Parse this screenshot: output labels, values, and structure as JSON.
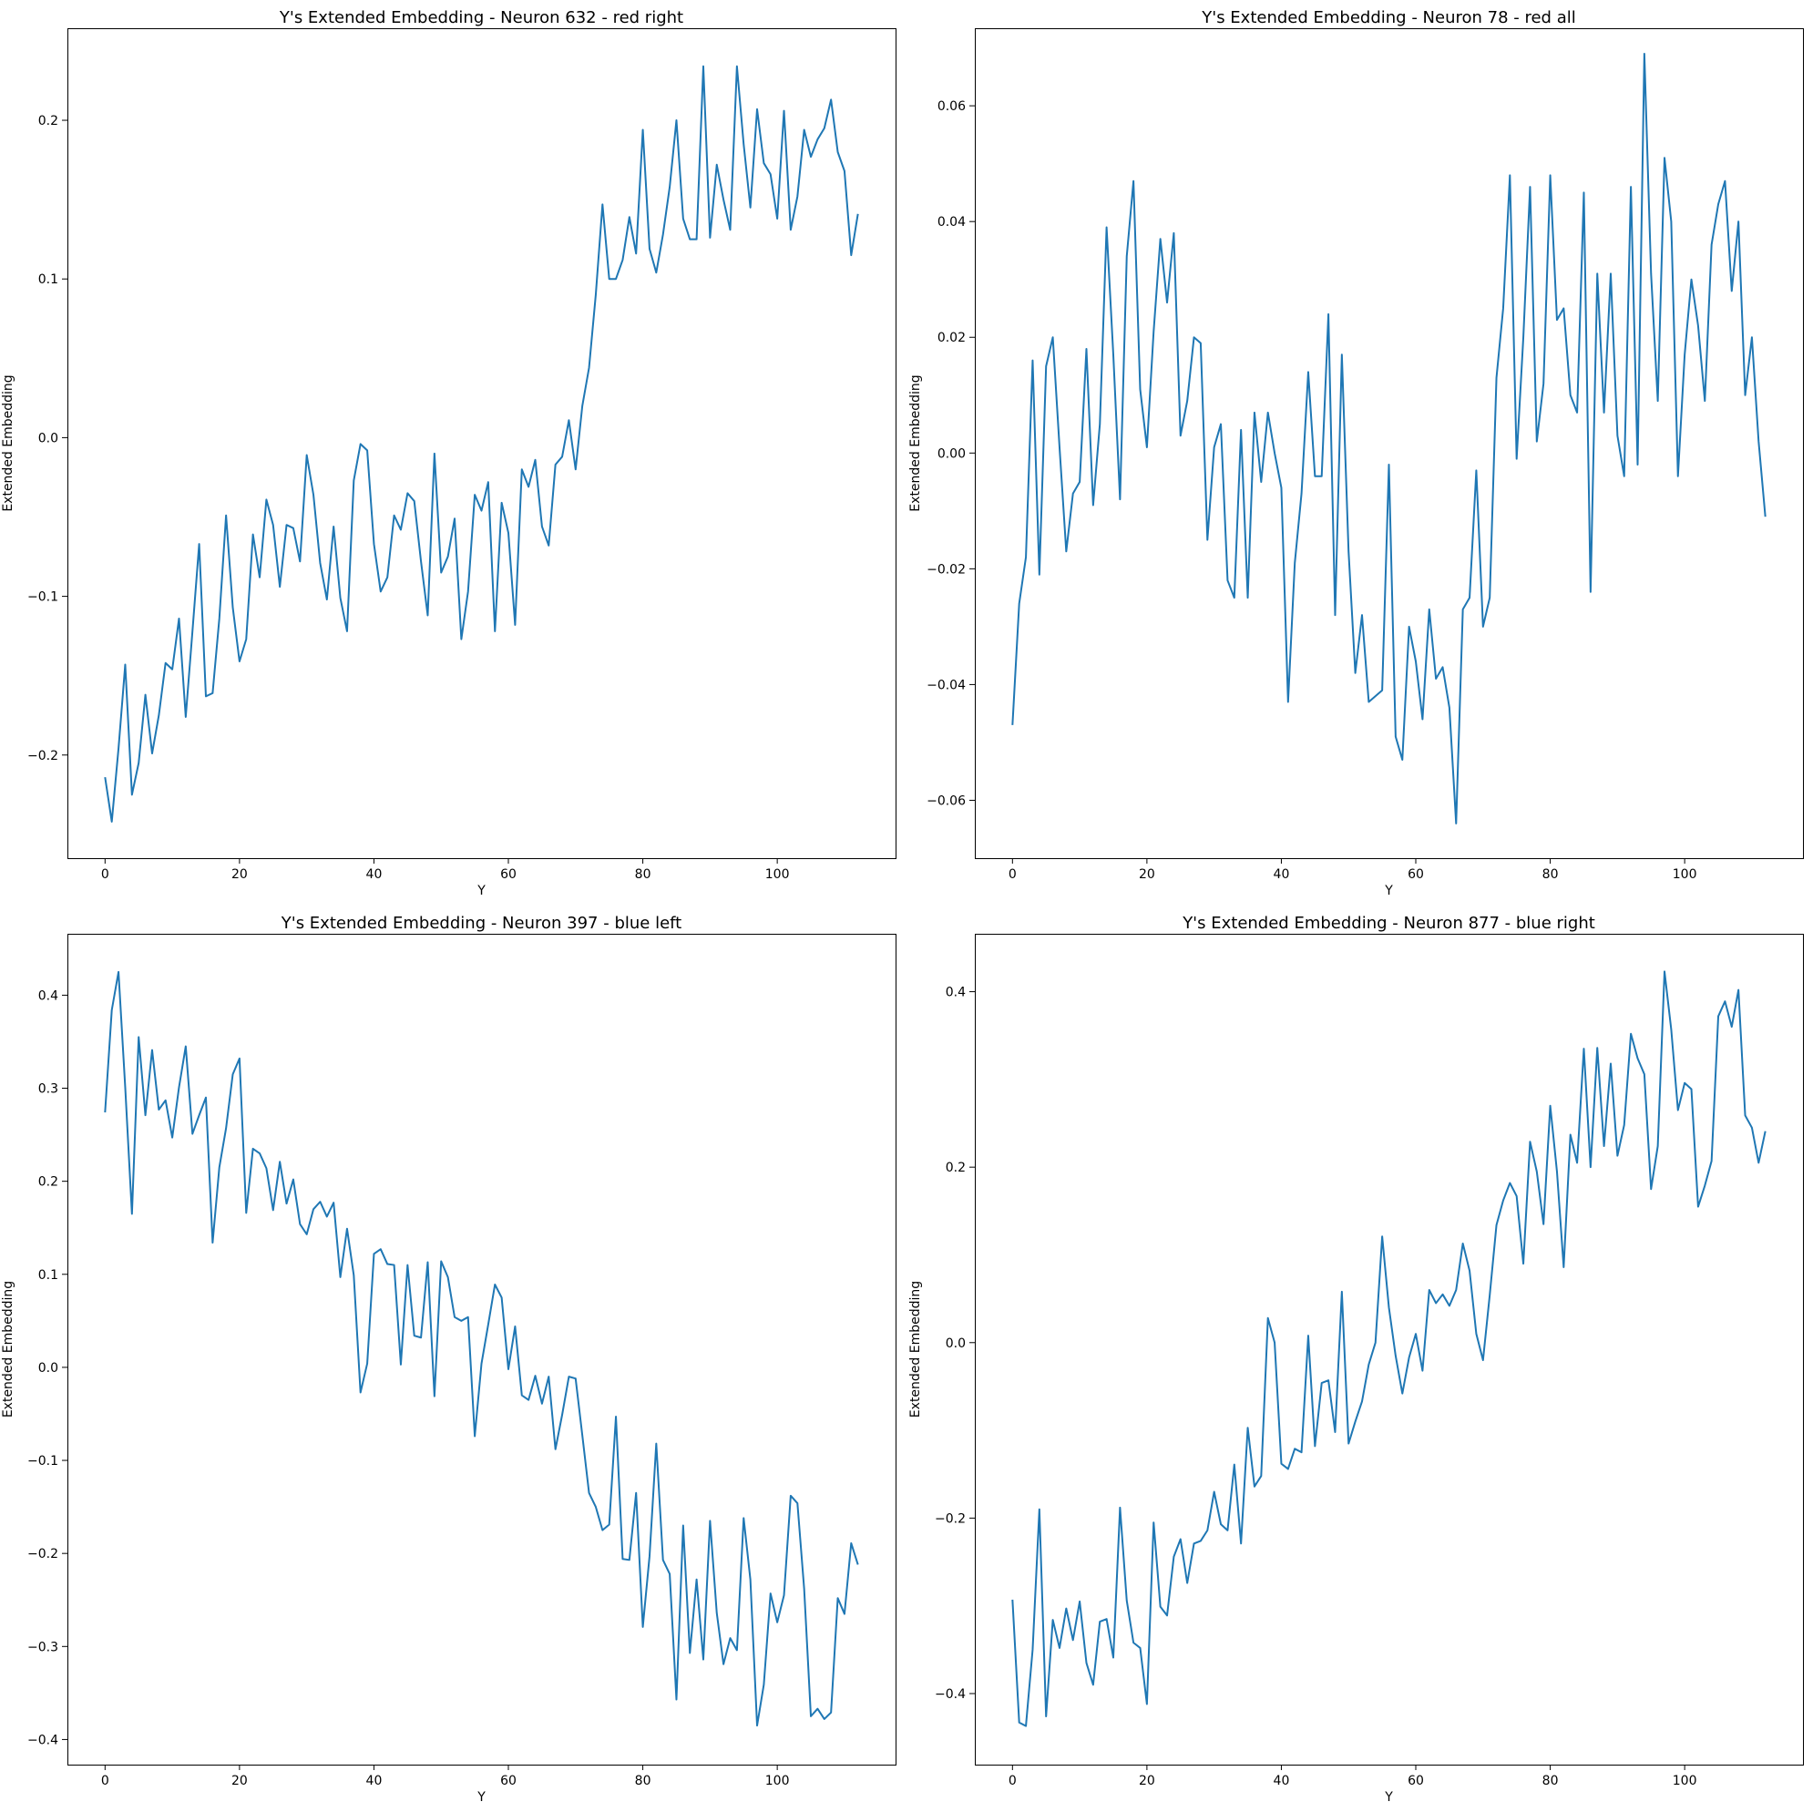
{
  "line_color": "#1f77b4",
  "chart_data": [
    {
      "type": "line",
      "title": "Y's Extended Embedding - Neuron 632 - red right",
      "xlabel": "Y",
      "ylabel": "Extended Embedding",
      "xlim": [
        -5.6,
        117.6
      ],
      "ylim": [
        -0.265,
        0.258
      ],
      "xticks": [
        0,
        20,
        40,
        60,
        80,
        100
      ],
      "xtick_labels": [
        "0",
        "20",
        "40",
        "60",
        "80",
        "100"
      ],
      "yticks": [
        -0.2,
        -0.1,
        0.0,
        0.1,
        0.2
      ],
      "ytick_labels": [
        "−0.2",
        "−0.1",
        "0.0",
        "0.1",
        "0.2"
      ],
      "grid": false,
      "series": [
        {
          "values": [
            -0.214,
            -0.242,
            -0.196,
            -0.143,
            -0.225,
            -0.205,
            -0.162,
            -0.199,
            -0.175,
            -0.142,
            -0.146,
            -0.114,
            -0.176,
            -0.122,
            -0.067,
            -0.163,
            -0.161,
            -0.114,
            -0.049,
            -0.107,
            -0.141,
            -0.127,
            -0.061,
            -0.088,
            -0.039,
            -0.055,
            -0.094,
            -0.055,
            -0.057,
            -0.078,
            -0.011,
            -0.036,
            -0.079,
            -0.102,
            -0.056,
            -0.101,
            -0.122,
            -0.027,
            -0.004,
            -0.008,
            -0.067,
            -0.097,
            -0.088,
            -0.049,
            -0.058,
            -0.035,
            -0.04,
            -0.078,
            -0.112,
            -0.01,
            -0.085,
            -0.075,
            -0.051,
            -0.127,
            -0.097,
            -0.036,
            -0.046,
            -0.028,
            -0.122,
            -0.041,
            -0.06,
            -0.118,
            -0.02,
            -0.031,
            -0.014,
            -0.056,
            -0.068,
            -0.017,
            -0.012,
            0.011,
            -0.02,
            0.02,
            0.044,
            0.09,
            0.147,
            0.1,
            0.1,
            0.112,
            0.139,
            0.116,
            0.194,
            0.119,
            0.104,
            0.128,
            0.158,
            0.2,
            0.138,
            0.125,
            0.125,
            0.234,
            0.126,
            0.172,
            0.15,
            0.131,
            0.234,
            0.185,
            0.145,
            0.207,
            0.173,
            0.166,
            0.138,
            0.206,
            0.131,
            0.152,
            0.194,
            0.177,
            0.188,
            0.195,
            0.213,
            0.18,
            0.168,
            0.115,
            0.141
          ]
        }
      ]
    },
    {
      "type": "line",
      "title": "Y's Extended Embedding - Neuron 78 - red all",
      "xlabel": "Y",
      "ylabel": "Extended Embedding",
      "xlim": [
        -5.6,
        117.6
      ],
      "ylim": [
        -0.07,
        0.0734
      ],
      "xticks": [
        0,
        20,
        40,
        60,
        80,
        100
      ],
      "xtick_labels": [
        "0",
        "20",
        "40",
        "60",
        "80",
        "100"
      ],
      "yticks": [
        -0.06,
        -0.04,
        -0.02,
        0.0,
        0.02,
        0.04,
        0.06
      ],
      "ytick_labels": [
        "−0.06",
        "−0.04",
        "−0.02",
        "0.00",
        "0.02",
        "0.04",
        "0.06"
      ],
      "grid": false,
      "series": [
        {
          "values": [
            -0.047,
            -0.026,
            -0.018,
            0.016,
            -0.021,
            0.015,
            0.02,
            0.001,
            -0.017,
            -0.007,
            -0.005,
            0.018,
            -0.009,
            0.005,
            0.039,
            0.017,
            -0.008,
            0.034,
            0.047,
            0.011,
            0.001,
            0.021,
            0.037,
            0.026,
            0.038,
            0.003,
            0.009,
            0.02,
            0.019,
            -0.015,
            0.001,
            0.005,
            -0.022,
            -0.025,
            0.004,
            -0.025,
            0.007,
            -0.005,
            0.007,
            0.0,
            -0.006,
            -0.043,
            -0.019,
            -0.007,
            0.014,
            -0.004,
            -0.004,
            0.024,
            -0.028,
            0.017,
            -0.017,
            -0.038,
            -0.028,
            -0.043,
            -0.042,
            -0.041,
            -0.002,
            -0.049,
            -0.053,
            -0.03,
            -0.036,
            -0.046,
            -0.027,
            -0.039,
            -0.037,
            -0.044,
            -0.064,
            -0.027,
            -0.025,
            -0.003,
            -0.03,
            -0.025,
            0.013,
            0.025,
            0.048,
            -0.001,
            0.02,
            0.046,
            0.002,
            0.012,
            0.048,
            0.023,
            0.025,
            0.01,
            0.007,
            0.045,
            -0.024,
            0.031,
            0.007,
            0.031,
            0.003,
            -0.004,
            0.046,
            -0.002,
            0.069,
            0.031,
            0.009,
            0.051,
            0.04,
            -0.004,
            0.017,
            0.03,
            0.022,
            0.009,
            0.036,
            0.043,
            0.047,
            0.028,
            0.04,
            0.01,
            0.02,
            0.002,
            -0.011
          ]
        }
      ]
    },
    {
      "type": "line",
      "title": "Y's Extended Embedding - Neuron 397 - blue left",
      "xlabel": "Y",
      "ylabel": "Extended Embedding",
      "xlim": [
        -5.6,
        117.6
      ],
      "ylim": [
        -0.427,
        0.466
      ],
      "xticks": [
        0,
        20,
        40,
        60,
        80,
        100
      ],
      "xtick_labels": [
        "0",
        "20",
        "40",
        "60",
        "80",
        "100"
      ],
      "yticks": [
        -0.4,
        -0.3,
        -0.2,
        -0.1,
        0.0,
        0.1,
        0.2,
        0.3,
        0.4
      ],
      "ytick_labels": [
        "−0.4",
        "−0.3",
        "−0.2",
        "−0.1",
        "0.0",
        "0.1",
        "0.2",
        "0.3",
        "0.4"
      ],
      "grid": false,
      "series": [
        {
          "values": [
            0.274,
            0.384,
            0.425,
            0.301,
            0.165,
            0.355,
            0.271,
            0.341,
            0.277,
            0.287,
            0.247,
            0.301,
            0.345,
            0.251,
            0.271,
            0.29,
            0.134,
            0.215,
            0.257,
            0.315,
            0.332,
            0.166,
            0.235,
            0.23,
            0.214,
            0.169,
            0.221,
            0.176,
            0.202,
            0.154,
            0.143,
            0.17,
            0.178,
            0.162,
            0.177,
            0.097,
            0.149,
            0.099,
            -0.027,
            0.004,
            0.122,
            0.127,
            0.111,
            0.11,
            0.003,
            0.11,
            0.034,
            0.032,
            0.113,
            -0.031,
            0.114,
            0.097,
            0.054,
            0.05,
            0.054,
            -0.074,
            0.004,
            0.046,
            0.089,
            0.075,
            -0.002,
            0.044,
            -0.03,
            -0.035,
            -0.009,
            -0.039,
            -0.01,
            -0.088,
            -0.051,
            -0.01,
            -0.012,
            -0.073,
            -0.135,
            -0.15,
            -0.175,
            -0.169,
            -0.053,
            -0.206,
            -0.207,
            -0.135,
            -0.279,
            -0.203,
            -0.082,
            -0.207,
            -0.222,
            -0.357,
            -0.17,
            -0.307,
            -0.228,
            -0.314,
            -0.165,
            -0.264,
            -0.319,
            -0.291,
            -0.304,
            -0.162,
            -0.228,
            -0.385,
            -0.341,
            -0.243,
            -0.274,
            -0.245,
            -0.138,
            -0.146,
            -0.238,
            -0.375,
            -0.367,
            -0.378,
            -0.371,
            -0.248,
            -0.265,
            -0.189,
            -0.212
          ]
        }
      ]
    },
    {
      "type": "line",
      "title": "Y's Extended Embedding - Neuron 877 - blue right",
      "xlabel": "Y",
      "ylabel": "Extended Embedding",
      "xlim": [
        -5.6,
        117.6
      ],
      "ylim": [
        -0.481,
        0.466
      ],
      "xticks": [
        0,
        20,
        40,
        60,
        80,
        100
      ],
      "xtick_labels": [
        "0",
        "20",
        "40",
        "60",
        "80",
        "100"
      ],
      "yticks": [
        -0.4,
        -0.2,
        0.0,
        0.2,
        0.4
      ],
      "ytick_labels": [
        "−0.4",
        "−0.2",
        "0.0",
        "0.2",
        "0.4"
      ],
      "grid": false,
      "series": [
        {
          "values": [
            -0.293,
            -0.433,
            -0.437,
            -0.35,
            -0.19,
            -0.426,
            -0.316,
            -0.348,
            -0.303,
            -0.339,
            -0.295,
            -0.365,
            -0.39,
            -0.318,
            -0.315,
            -0.359,
            -0.188,
            -0.294,
            -0.342,
            -0.348,
            -0.412,
            -0.205,
            -0.301,
            -0.311,
            -0.244,
            -0.224,
            -0.274,
            -0.229,
            -0.226,
            -0.214,
            -0.17,
            -0.207,
            -0.214,
            -0.139,
            -0.229,
            -0.097,
            -0.164,
            -0.152,
            0.028,
            0.0,
            -0.138,
            -0.144,
            -0.121,
            -0.125,
            0.008,
            -0.118,
            -0.046,
            -0.043,
            -0.102,
            0.058,
            -0.115,
            -0.09,
            -0.067,
            -0.025,
            0.0,
            0.121,
            0.04,
            -0.015,
            -0.058,
            -0.017,
            0.01,
            -0.032,
            0.06,
            0.045,
            0.055,
            0.042,
            0.06,
            0.113,
            0.082,
            0.01,
            -0.02,
            0.054,
            0.134,
            0.162,
            0.182,
            0.167,
            0.09,
            0.229,
            0.195,
            0.135,
            0.27,
            0.195,
            0.086,
            0.237,
            0.205,
            0.335,
            0.2,
            0.336,
            0.224,
            0.318,
            0.213,
            0.248,
            0.352,
            0.324,
            0.306,
            0.175,
            0.224,
            0.423,
            0.357,
            0.265,
            0.296,
            0.289,
            0.155,
            0.179,
            0.207,
            0.372,
            0.389,
            0.36,
            0.402,
            0.259,
            0.245,
            0.205,
            0.241
          ]
        }
      ]
    }
  ]
}
